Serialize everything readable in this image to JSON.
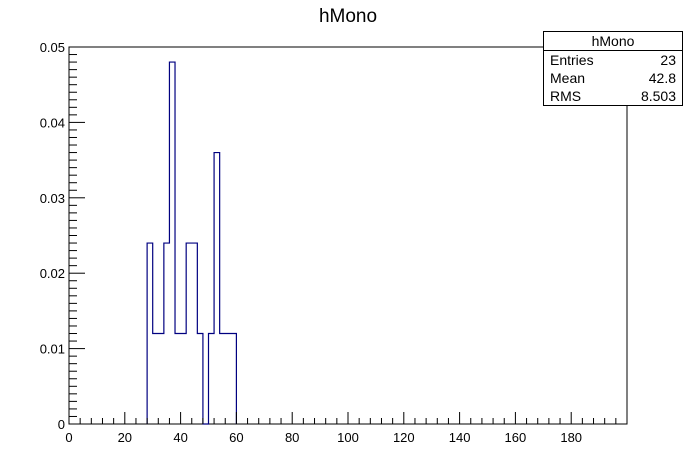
{
  "chart_data": {
    "type": "bar",
    "title": "hMono",
    "xlabel": "",
    "ylabel": "",
    "xlim": [
      0,
      200
    ],
    "ylim": [
      0,
      0.05
    ],
    "bin_width": 2,
    "x_ticks": [
      0,
      20,
      40,
      60,
      80,
      100,
      120,
      140,
      160,
      180
    ],
    "y_ticks": [
      0,
      0.01,
      0.02,
      0.03,
      0.04,
      0.05
    ],
    "x_tick_labels": [
      "0",
      "20",
      "40",
      "60",
      "80",
      "100",
      "120",
      "140",
      "160",
      "180"
    ],
    "y_tick_labels": [
      "0",
      "0.01",
      "0.02",
      "0.03",
      "0.04",
      "0.05"
    ],
    "bins": [
      {
        "x": 28,
        "value": 0.024
      },
      {
        "x": 30,
        "value": 0.012
      },
      {
        "x": 32,
        "value": 0.012
      },
      {
        "x": 34,
        "value": 0.024
      },
      {
        "x": 36,
        "value": 0.048
      },
      {
        "x": 38,
        "value": 0.012
      },
      {
        "x": 40,
        "value": 0.012
      },
      {
        "x": 42,
        "value": 0.024
      },
      {
        "x": 44,
        "value": 0.024
      },
      {
        "x": 46,
        "value": 0.012
      },
      {
        "x": 48,
        "value": 0.0
      },
      {
        "x": 50,
        "value": 0.012
      },
      {
        "x": 52,
        "value": 0.036
      },
      {
        "x": 54,
        "value": 0.012
      },
      {
        "x": 56,
        "value": 0.012
      },
      {
        "x": 58,
        "value": 0.012
      }
    ],
    "line_color": "#000080",
    "grid": false,
    "stats": {
      "title": "hMono",
      "rows": [
        {
          "label": "Entries",
          "value": "23"
        },
        {
          "label": "Mean",
          "value": "42.8"
        },
        {
          "label": "RMS",
          "value": "8.503"
        }
      ],
      "placement": "top-right"
    }
  }
}
